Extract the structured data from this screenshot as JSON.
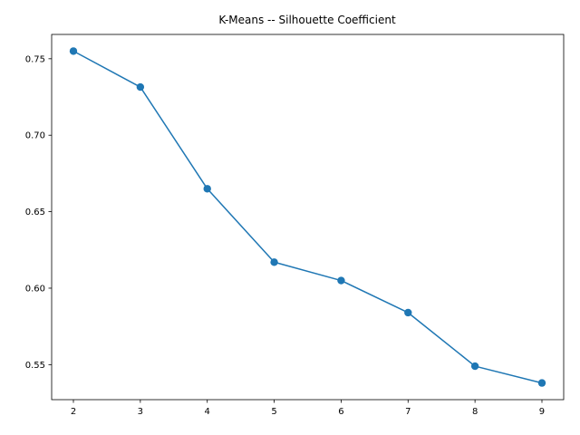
{
  "chart_data": {
    "type": "line",
    "title": "K-Means -- Silhouette Coefficient",
    "xlabel": "",
    "ylabel": "",
    "x": [
      2,
      3,
      4,
      5,
      6,
      7,
      8,
      9
    ],
    "series": [
      {
        "name": "silhouette",
        "values": [
          0.755,
          0.7315,
          0.665,
          0.617,
          0.605,
          0.584,
          0.549,
          0.538
        ],
        "color": "#1f77b4",
        "marker": "circle"
      }
    ],
    "xlim": [
      1.675,
      9.325
    ],
    "ylim": [
      0.5271,
      0.7659
    ],
    "xticks": [
      2,
      3,
      4,
      5,
      6,
      7,
      8,
      9
    ],
    "xtick_labels": [
      "2",
      "3",
      "4",
      "5",
      "6",
      "7",
      "8",
      "9"
    ],
    "yticks": [
      0.55,
      0.6,
      0.65,
      0.7,
      0.75
    ],
    "ytick_labels": [
      "0.55",
      "0.60",
      "0.65",
      "0.70",
      "0.75"
    ],
    "grid": false,
    "legend": "none"
  }
}
